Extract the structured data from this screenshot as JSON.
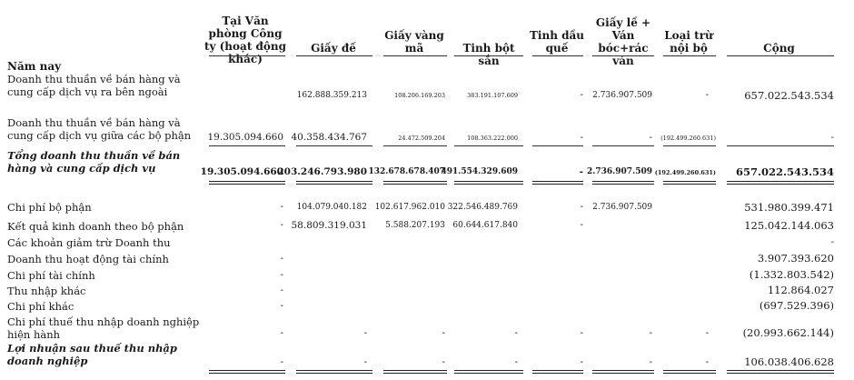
{
  "headers": {
    "van_phong": "Tại Văn phòng Công ty (hoạt động khác)",
    "giay_de": "Giấy đế",
    "giay_vang_ma": "Giấy vàng mã",
    "tinh_bot_san": "Tinh bột sắn",
    "tinh_dau_que": "Tinh dầu quế",
    "giay_le_van": "Giấy lề + Ván bóc+rác ván",
    "loai_tru": "Loại trừ nội bộ",
    "cong": "Cộng"
  },
  "section_title": "Năm nay",
  "rows": [
    {
      "label": "Doanh thu thuần về bán hàng và cung cấp dịch vụ ra bên ngoài",
      "style": "normal",
      "values": [
        "",
        "162.888.359.213",
        "108.206.169.203",
        "383.191.107.609",
        "-",
        "2.736.907.509",
        "-",
        "657.022.543.534"
      ]
    },
    {
      "label": "Doanh thu thuần về bán hàng và cung cấp dịch vụ giữa các bộ phận",
      "style": "normal",
      "values": [
        "19.305.094.660",
        "40.358.434.767",
        "24.472.509.204",
        "108.363.222.000",
        "-",
        "-",
        "(192.499.260.631)",
        "-"
      ]
    },
    {
      "label": "Tổng doanh thu thuần về bán hàng và cung cấp dịch vụ",
      "style": "bold-italic",
      "values": [
        "19.305.094.660",
        "203.246.793.980",
        "132.678.678.407",
        "491.554.329.609",
        "-",
        "2.736.907.509",
        "(192.499.260.631)",
        "657.022.543.534"
      ]
    },
    {
      "label": "Chi phí bộ phận",
      "style": "normal",
      "values": [
        "-",
        "104.079.040.182",
        "102.617.962.010",
        "322.546.489.769",
        "-",
        "2.736.907.509",
        "",
        "531.980.399.471"
      ]
    },
    {
      "label": "Kết quả kinh doanh theo bộ phận",
      "style": "normal",
      "values": [
        "-",
        "58.809.319.031",
        "5.588.207.193",
        "60.644.617.840",
        "-",
        "",
        "",
        "125.042.144.063"
      ]
    },
    {
      "label": "Các khoản giảm trừ Doanh thu",
      "style": "normal",
      "values": [
        "",
        "",
        "",
        "",
        "",
        "",
        "",
        "-"
      ]
    },
    {
      "label": "Doanh thu hoạt động tài chính",
      "style": "normal",
      "values": [
        "-",
        "",
        "",
        "",
        "",
        "",
        "",
        "3.907.393.620"
      ]
    },
    {
      "label": "Chi phí tài chính",
      "style": "normal",
      "values": [
        "-",
        "",
        "",
        "",
        "",
        "",
        "",
        "(1.332.803.542)"
      ]
    },
    {
      "label": "Thu nhập khác",
      "style": "normal",
      "values": [
        "-",
        "",
        "",
        "",
        "",
        "",
        "",
        "112.864.027"
      ]
    },
    {
      "label": "Chi phí khác",
      "style": "normal",
      "values": [
        "-",
        "",
        "",
        "",
        "",
        "",
        "",
        "(697.529.396)"
      ]
    },
    {
      "label": "Chi phí thuế thu nhập doanh nghiệp hiện hành",
      "style": "normal",
      "values": [
        "-",
        "-",
        "-",
        "-",
        "-",
        "-",
        "-",
        "(20.993.662.144)"
      ]
    },
    {
      "label": "Lợi nhuận sau thuế thu nhập doanh nghiệp",
      "style": "bold-italic",
      "values": [
        "-",
        "-",
        "-",
        "-",
        "-",
        "-",
        "-",
        "106.038.406.628"
      ]
    }
  ]
}
